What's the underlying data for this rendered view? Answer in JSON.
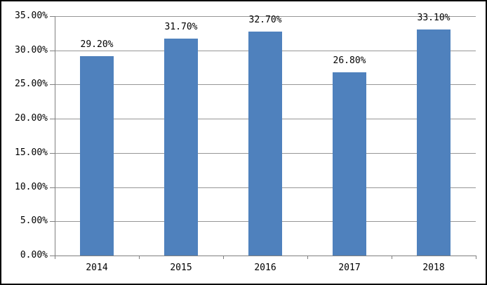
{
  "chart_data": {
    "type": "bar",
    "title": "",
    "xlabel": "",
    "ylabel": "",
    "categories": [
      "2014",
      "2015",
      "2016",
      "2017",
      "2018"
    ],
    "values": [
      29.2,
      31.7,
      32.7,
      26.8,
      33.1
    ],
    "data_labels": [
      "29.20%",
      "31.70%",
      "32.70%",
      "26.80%",
      "33.10%"
    ],
    "ylim": [
      0,
      35
    ],
    "y_tick_step": 5,
    "y_tick_labels": [
      "0.00%",
      "5.00%",
      "10.00%",
      "15.00%",
      "20.00%",
      "25.00%",
      "30.00%",
      "35.00%"
    ],
    "grid": true,
    "legend": false,
    "colors": {
      "bar": "#4f81bd",
      "gridline": "#969696",
      "axis": "#808080",
      "text": "#000000",
      "background": "#ffffff",
      "frame_border": "#000000"
    }
  }
}
